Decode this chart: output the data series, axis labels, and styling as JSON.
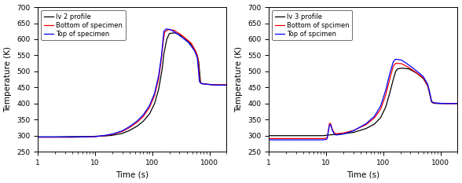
{
  "left": {
    "legend": [
      "lv 2 profile",
      "Bottom of specimen",
      "Top of specimen"
    ],
    "colors": [
      "black",
      "red",
      "blue"
    ],
    "xlabel": "Time (s)",
    "ylabel": "Temperature (K)",
    "ylim": [
      250,
      700
    ],
    "yticks": [
      250,
      300,
      350,
      400,
      450,
      500,
      550,
      600,
      650,
      700
    ],
    "xlim": [
      1,
      2000
    ],
    "black_profile": {
      "t": [
        1,
        2,
        4,
        7,
        10,
        15,
        20,
        30,
        40,
        55,
        70,
        90,
        110,
        130,
        150,
        160,
        180,
        200,
        250,
        350,
        500,
        600,
        650,
        700,
        750,
        900,
        1200,
        1500,
        2000
      ],
      "T": [
        296,
        296,
        297,
        297,
        298,
        299,
        301,
        307,
        316,
        330,
        345,
        368,
        400,
        445,
        510,
        555,
        600,
        618,
        620,
        608,
        580,
        555,
        530,
        465,
        462,
        460,
        458,
        458,
        458
      ]
    },
    "red_profile": {
      "t": [
        1,
        2,
        4,
        7,
        10,
        15,
        20,
        30,
        40,
        55,
        70,
        90,
        110,
        130,
        145,
        155,
        165,
        190,
        240,
        320,
        480,
        580,
        630,
        680,
        730,
        900,
        1200,
        1500,
        2000
      ],
      "T": [
        295,
        295,
        295,
        296,
        297,
        300,
        304,
        313,
        325,
        342,
        360,
        388,
        425,
        478,
        540,
        590,
        622,
        630,
        628,
        614,
        588,
        562,
        540,
        468,
        462,
        460,
        458,
        458,
        458
      ]
    },
    "blue_profile": {
      "t": [
        1,
        2,
        4,
        7,
        10,
        15,
        20,
        30,
        40,
        55,
        70,
        90,
        110,
        130,
        145,
        155,
        160,
        175,
        210,
        280,
        430,
        550,
        615,
        670,
        725,
        900,
        1200,
        1500,
        2000
      ],
      "T": [
        296,
        296,
        296,
        296,
        297,
        301,
        305,
        315,
        328,
        346,
        365,
        394,
        432,
        488,
        548,
        600,
        625,
        632,
        630,
        616,
        590,
        564,
        542,
        468,
        462,
        460,
        458,
        457,
        457
      ]
    }
  },
  "right": {
    "legend": [
      "lv 3 profile",
      "Bottom of spcimen",
      "Top of spcimen"
    ],
    "colors": [
      "black",
      "red",
      "blue"
    ],
    "xlabel": "Time (s)",
    "ylabel": "Temperature (K)",
    "ylim": [
      250,
      700
    ],
    "yticks": [
      250,
      300,
      350,
      400,
      450,
      500,
      550,
      600,
      650,
      700
    ],
    "xlim": [
      1,
      2000
    ],
    "black_profile": {
      "t": [
        1,
        2,
        4,
        7,
        9,
        10,
        11,
        13,
        15,
        20,
        30,
        50,
        70,
        90,
        110,
        130,
        150,
        165,
        180,
        210,
        280,
        380,
        500,
        600,
        650,
        700,
        750,
        900,
        1200,
        1500,
        2000
      ],
      "T": [
        300,
        300,
        300,
        300,
        300,
        301,
        302,
        303,
        304,
        306,
        310,
        322,
        336,
        356,
        388,
        432,
        475,
        500,
        508,
        510,
        508,
        495,
        478,
        455,
        430,
        405,
        401,
        400,
        400,
        400,
        400
      ]
    },
    "red_profile": {
      "t": [
        1,
        2,
        4,
        7,
        9,
        10,
        10.5,
        11,
        11.5,
        12,
        13,
        14,
        15,
        20,
        30,
        50,
        70,
        90,
        110,
        130,
        150,
        165,
        180,
        210,
        280,
        380,
        500,
        600,
        650,
        700,
        750,
        900,
        1200,
        1500,
        2000
      ],
      "T": [
        291,
        291,
        291,
        291,
        291,
        292,
        295,
        316,
        338,
        338,
        318,
        308,
        306,
        308,
        316,
        334,
        355,
        382,
        425,
        475,
        516,
        525,
        525,
        524,
        512,
        496,
        480,
        456,
        432,
        406,
        402,
        401,
        400,
        400,
        400
      ]
    },
    "blue_profile": {
      "t": [
        1,
        2,
        4,
        7,
        9,
        10,
        10.5,
        11,
        11.5,
        12,
        13,
        14,
        15,
        20,
        30,
        50,
        70,
        90,
        110,
        130,
        150,
        165,
        180,
        210,
        280,
        380,
        500,
        600,
        650,
        700,
        750,
        900,
        1200,
        1500,
        2000
      ],
      "T": [
        287,
        287,
        287,
        287,
        287,
        288,
        291,
        314,
        332,
        335,
        315,
        305,
        302,
        305,
        315,
        337,
        360,
        392,
        440,
        492,
        530,
        538,
        537,
        535,
        520,
        502,
        484,
        460,
        435,
        407,
        403,
        401,
        400,
        400,
        400
      ]
    }
  }
}
